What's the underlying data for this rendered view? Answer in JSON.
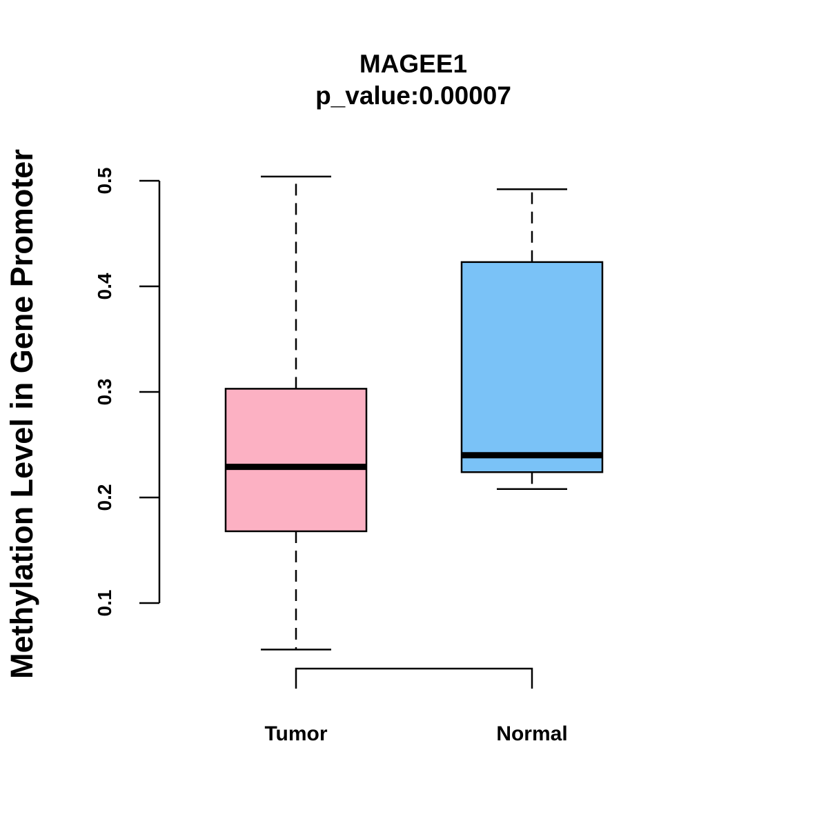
{
  "chart_data": {
    "type": "box",
    "title": "MAGEE1",
    "subtitle": "p_value:0.00007",
    "ylabel": "Methylation Level in Gene Promoter",
    "xlabel": "",
    "ylim": [
      0.1,
      0.5
    ],
    "yticks": [
      "0.1",
      "0.2",
      "0.3",
      "0.4",
      "0.5"
    ],
    "categories": [
      "Tumor",
      "Normal"
    ],
    "boxes": [
      {
        "category": "Tumor",
        "whisker_low": 0.056,
        "q1": 0.168,
        "median": 0.229,
        "q3": 0.303,
        "whisker_high": 0.504,
        "color": "#FCB1C3"
      },
      {
        "category": "Normal",
        "whisker_low": 0.208,
        "q1": 0.224,
        "median": 0.24,
        "q3": 0.423,
        "whisker_high": 0.492,
        "color": "#7AC2F7"
      }
    ],
    "significance_bracket": {
      "from": "Tumor",
      "to": "Normal"
    },
    "grid": false,
    "legend": "none"
  }
}
